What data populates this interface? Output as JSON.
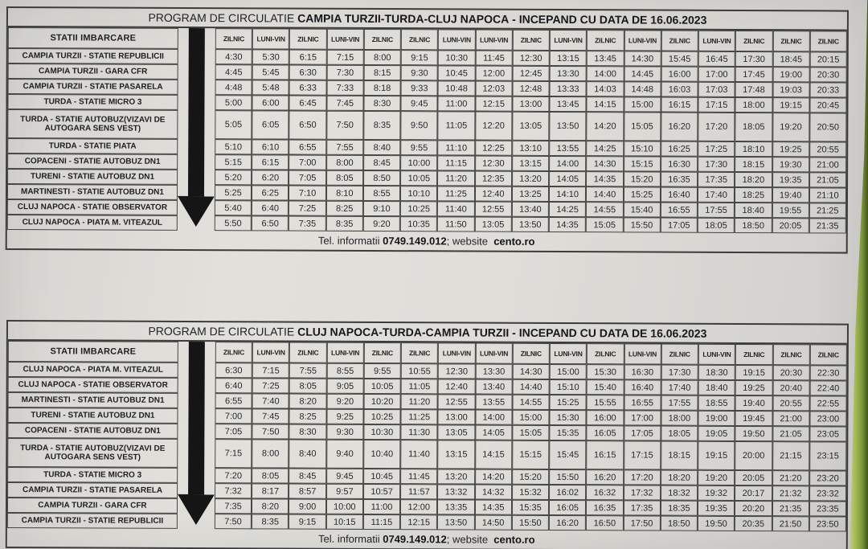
{
  "photo": {
    "paper_color": "#e0ded9",
    "table_border_color": "#3c3c3c",
    "arrow_color": "#151515",
    "background_edge_green": "#7d9a3e"
  },
  "tables": [
    {
      "title": {
        "prefix": "PROGRAM DE CIRCULATIE ",
        "origin": "CAMPIA TURZII",
        "via": "-TURDA-",
        "dest": "CLUJ NAPOCA",
        "suffix": " - INCEPAND CU DATA DE 16.06.2023"
      },
      "stations_header": "STATII IMBARCARE",
      "day_headers": [
        "ZILNIC",
        "LUNI-VIN",
        "ZILNIC",
        "LUNI-VIN",
        "ZILNIC",
        "ZILNIC",
        "LUNI-VIN",
        "LUNI-VIN",
        "ZILNIC",
        "LUNI-VIN",
        "ZILNIC",
        "LUNI-VIN",
        "ZILNIC",
        "LUNI-VIN",
        "ZILNIC",
        "ZILNIC",
        "ZILNIC"
      ],
      "rows": [
        {
          "station": "CAMPIA TURZII - STATIE REPUBLICII",
          "times": [
            "4:30",
            "5:30",
            "6:15",
            "7:15",
            "8:00",
            "9:15",
            "10:30",
            "11:45",
            "12:30",
            "13:15",
            "13:45",
            "14:30",
            "15:45",
            "16:45",
            "17:30",
            "18:45",
            "20:15"
          ]
        },
        {
          "station": "CAMPIA TURZII - GARA CFR",
          "times": [
            "4:45",
            "5:45",
            "6:30",
            "7:30",
            "8:15",
            "9:30",
            "10:45",
            "12:00",
            "12:45",
            "13:30",
            "14:00",
            "14:45",
            "16:00",
            "17:00",
            "17:45",
            "19:00",
            "20:30"
          ]
        },
        {
          "station": "CAMPIA TURZII - STATIE PASARELA",
          "times": [
            "4:48",
            "5:48",
            "6:33",
            "7:33",
            "8:18",
            "9:33",
            "10:48",
            "12:03",
            "12:48",
            "13:33",
            "14:03",
            "14:48",
            "16:03",
            "17:03",
            "17:48",
            "19:03",
            "20:33"
          ]
        },
        {
          "station": "TURDA - STATIE MICRO 3",
          "times": [
            "5:00",
            "6:00",
            "6:45",
            "7:45",
            "8:30",
            "9:45",
            "11:00",
            "12:15",
            "13:00",
            "13:45",
            "14:15",
            "15:00",
            "16:15",
            "17:15",
            "18:00",
            "19:15",
            "20:45"
          ]
        },
        {
          "station": "TURDA - STATIE AUTOBUZ(VIZAVI DE AUTOGARA SENS VEST)",
          "times": [
            "5:05",
            "6:05",
            "6:50",
            "7:50",
            "8:35",
            "9:50",
            "11:05",
            "12:20",
            "13:05",
            "13:50",
            "14:20",
            "15:05",
            "16:20",
            "17:20",
            "18:05",
            "19:20",
            "20:50"
          ]
        },
        {
          "station": "TURDA - STATIE PIATA",
          "times": [
            "5:10",
            "6:10",
            "6:55",
            "7:55",
            "8:40",
            "9:55",
            "11:10",
            "12:25",
            "13:10",
            "13:55",
            "14:25",
            "15:10",
            "16:25",
            "17:25",
            "18:10",
            "19:25",
            "20:55"
          ]
        },
        {
          "station": "COPACENI - STATIE AUTOBUZ DN1",
          "times": [
            "5:15",
            "6:15",
            "7:00",
            "8:00",
            "8:45",
            "10:00",
            "11:15",
            "12:30",
            "13:15",
            "14:00",
            "14:30",
            "15:15",
            "16:30",
            "17:30",
            "18:15",
            "19:30",
            "21:00"
          ]
        },
        {
          "station": "TURENI - STATIE AUTOBUZ DN1",
          "times": [
            "5:20",
            "6:20",
            "7:05",
            "8:05",
            "8:50",
            "10:05",
            "11:20",
            "12:35",
            "13:20",
            "14:05",
            "14:35",
            "15:20",
            "16:35",
            "17:35",
            "18:20",
            "19:35",
            "21:05"
          ]
        },
        {
          "station": "MARTINESTI - STATIE AUTOBUZ DN1",
          "times": [
            "5:25",
            "6:25",
            "7:10",
            "8:10",
            "8:55",
            "10:10",
            "11:25",
            "12:40",
            "13:25",
            "14:10",
            "14:40",
            "15:25",
            "16:40",
            "17:40",
            "18:25",
            "19:40",
            "21:10"
          ]
        },
        {
          "station": "CLUJ NAPOCA - STATIE OBSERVATOR",
          "times": [
            "5:40",
            "6:40",
            "7:25",
            "8:25",
            "9:10",
            "10:25",
            "11:40",
            "12:55",
            "13:40",
            "14:25",
            "14:55",
            "15:40",
            "16:55",
            "17:55",
            "18:40",
            "19:55",
            "21:25"
          ]
        },
        {
          "station": "CLUJ NAPOCA - PIATA M. VITEAZUL",
          "times": [
            "5:50",
            "6:50",
            "7:35",
            "8:35",
            "9:20",
            "10:35",
            "11:50",
            "13:05",
            "13:50",
            "14:35",
            "15:05",
            "15:50",
            "17:05",
            "18:05",
            "18:50",
            "20:05",
            "21:35"
          ]
        }
      ],
      "footer": {
        "pre": "Tel. informatii ",
        "phone": "0749.149.012",
        "mid": "; website  ",
        "site": "cento.ro"
      }
    },
    {
      "title": {
        "prefix": "PROGRAM DE CIRCULATIE ",
        "origin": "CLUJ NAPOCA",
        "via": "-TURDA-",
        "dest": "CAMPIA TURZII",
        "suffix": " - INCEPAND CU DATA DE 16.06.2023"
      },
      "stations_header": "STATII IMBARCARE",
      "day_headers": [
        "ZILNIC",
        "LUNI-VIN",
        "ZILNIC",
        "LUNI-VIN",
        "ZILNIC",
        "ZILNIC",
        "LUNI-VIN",
        "LUNI-VIN",
        "ZILNIC",
        "LUNI-VIN",
        "ZILNIC",
        "LUNI-VIN",
        "ZILNIC",
        "LUNI-VIN",
        "ZILNIC",
        "ZILNIC",
        "ZILNIC"
      ],
      "rows": [
        {
          "station": "CLUJ NAPOCA - PIATA M. VITEAZUL",
          "times": [
            "6:30",
            "7:15",
            "7:55",
            "8:55",
            "9:55",
            "10:55",
            "12:30",
            "13:30",
            "14:30",
            "15:00",
            "15:30",
            "16:30",
            "17:30",
            "18:30",
            "19:15",
            "20:30",
            "22:30"
          ]
        },
        {
          "station": "CLUJ NAPOCA - STATIE OBSERVATOR",
          "times": [
            "6:40",
            "7:25",
            "8:05",
            "9:05",
            "10:05",
            "11:05",
            "12:40",
            "13:40",
            "14:40",
            "15:10",
            "15:40",
            "16:40",
            "17:40",
            "18:40",
            "19:25",
            "20:40",
            "22:40"
          ]
        },
        {
          "station": "MARTINESTI - STATIE AUTOBUZ DN1",
          "times": [
            "6:55",
            "7:40",
            "8:20",
            "9:20",
            "10:20",
            "11:20",
            "12:55",
            "13:55",
            "14:55",
            "15:25",
            "15:55",
            "16:55",
            "17:55",
            "18:55",
            "19:40",
            "20:55",
            "22:55"
          ]
        },
        {
          "station": "TURENI - STATIE AUTOBUZ DN1",
          "times": [
            "7:00",
            "7:45",
            "8:25",
            "9:25",
            "10:25",
            "11:25",
            "13:00",
            "14:00",
            "15:00",
            "15:30",
            "16:00",
            "17:00",
            "18:00",
            "19:00",
            "19:45",
            "21:00",
            "23:00"
          ]
        },
        {
          "station": "COPACENI - STATIE AUTOBUZ DN1",
          "times": [
            "7:05",
            "7:50",
            "8:30",
            "9:30",
            "10:30",
            "11:30",
            "13:05",
            "14:05",
            "15:05",
            "15:35",
            "16:05",
            "17:05",
            "18:05",
            "19:05",
            "19:50",
            "21:05",
            "23:05"
          ]
        },
        {
          "station": "TURDA - STATIE AUTOBUZ(VIZAVI DE AUTOGARA SENS VEST)",
          "times": [
            "7:15",
            "8:00",
            "8:40",
            "9:40",
            "10:40",
            "11:40",
            "13:15",
            "14:15",
            "15:15",
            "15:45",
            "16:15",
            "17:15",
            "18:15",
            "19:15",
            "20:00",
            "21:15",
            "23:15"
          ]
        },
        {
          "station": "TURDA - STATIE MICRO 3",
          "times": [
            "7:20",
            "8:05",
            "8:45",
            "9:45",
            "10:45",
            "11:45",
            "13:20",
            "14:20",
            "15:20",
            "15:50",
            "16:20",
            "17:20",
            "18:20",
            "19:20",
            "20:05",
            "21:20",
            "23:20"
          ]
        },
        {
          "station": "CAMPIA TURZII - STATIE PASARELA",
          "times": [
            "7:32",
            "8:17",
            "8:57",
            "9:57",
            "10:57",
            "11:57",
            "13:32",
            "14:32",
            "15:32",
            "16:02",
            "16:32",
            "17:32",
            "18:32",
            "19:32",
            "20:17",
            "21:32",
            "23:32"
          ]
        },
        {
          "station": "CAMPIA TURZII - GARA CFR",
          "times": [
            "7:35",
            "8:20",
            "9:00",
            "10:00",
            "11:00",
            "12:00",
            "13:35",
            "14:35",
            "15:35",
            "16:05",
            "16:35",
            "17:35",
            "18:35",
            "19:35",
            "20:20",
            "21:35",
            "23:35"
          ]
        },
        {
          "station": "CAMPIA TURZII - STATIE REPUBLICII",
          "times": [
            "7:50",
            "8:35",
            "9:15",
            "10:15",
            "11:15",
            "12:15",
            "13:50",
            "14:50",
            "15:50",
            "16:20",
            "16:50",
            "17:50",
            "18:50",
            "19:50",
            "20:35",
            "21:50",
            "23:50"
          ]
        }
      ],
      "footer": {
        "pre": "Tel. informatii ",
        "phone": "0749.149.012",
        "mid": "; website  ",
        "site": "cento.ro"
      }
    }
  ]
}
